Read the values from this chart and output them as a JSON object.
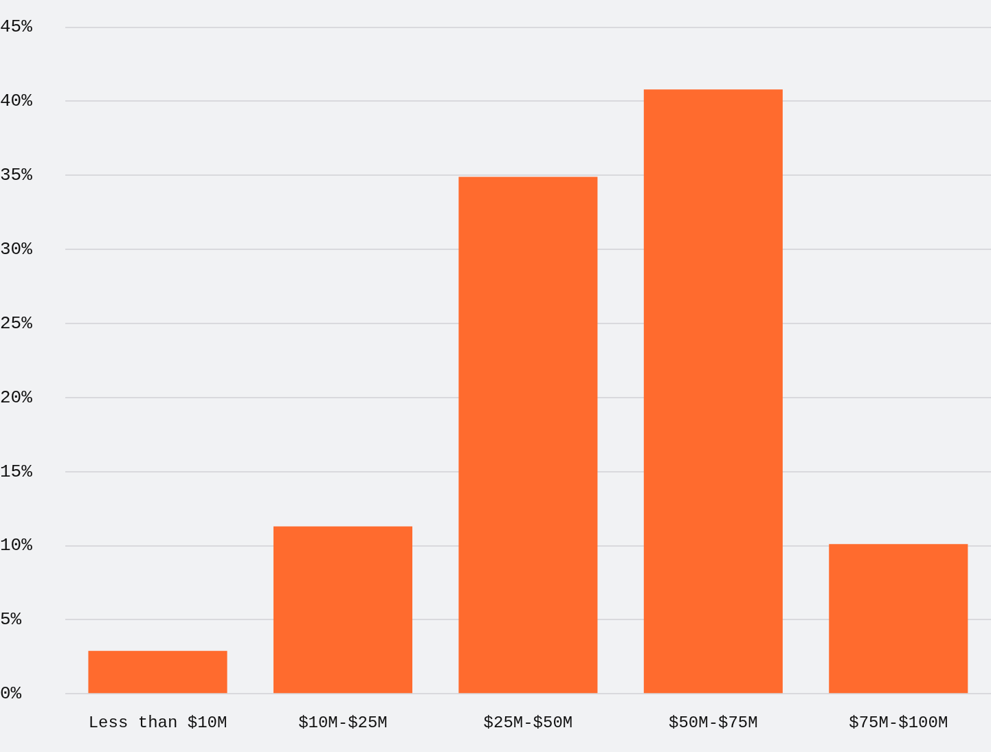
{
  "chart_data": {
    "type": "bar",
    "categories": [
      "Less than $10M",
      "$10M-$25M",
      "$25M-$50M",
      "$50M-$75M",
      "$75M-$100M"
    ],
    "values": [
      2.9,
      11.3,
      34.9,
      40.8,
      10.1
    ],
    "color": "#ff6b2e",
    "ylim": [
      0,
      45
    ],
    "yticks": [
      {
        "value": 0,
        "label": "0%"
      },
      {
        "value": 5,
        "label": "5%"
      },
      {
        "value": 10,
        "label": "10%"
      },
      {
        "value": 15,
        "label": "15%"
      },
      {
        "value": 20,
        "label": "20%"
      },
      {
        "value": 25,
        "label": "25%"
      },
      {
        "value": 30,
        "label": "30%"
      },
      {
        "value": 35,
        "label": "35%"
      },
      {
        "value": 40,
        "label": "40%"
      },
      {
        "value": 45,
        "label": "45%"
      }
    ],
    "grid": "y",
    "legend": false
  }
}
